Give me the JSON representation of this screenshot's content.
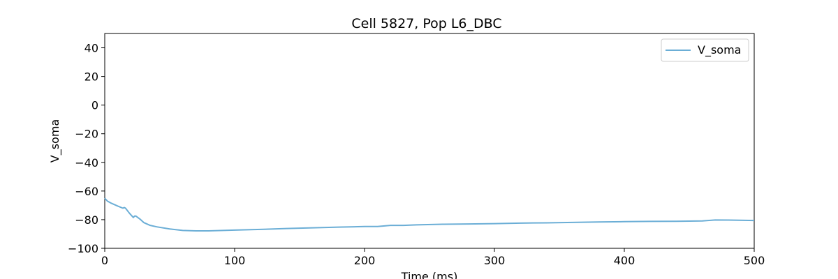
{
  "chart_data": {
    "type": "line",
    "title": "Cell 5827, Pop L6_DBC",
    "xlabel": "Time (ms)",
    "ylabel": "V_soma",
    "xlim": [
      0,
      500
    ],
    "ylim": [
      -100,
      50
    ],
    "xticks": [
      0,
      100,
      200,
      300,
      400,
      500
    ],
    "yticks": [
      -100,
      -80,
      -60,
      -40,
      -20,
      0,
      20,
      40
    ],
    "xtick_labels": [
      "0",
      "100",
      "200",
      "300",
      "400",
      "500"
    ],
    "ytick_labels": [
      "−100",
      "−80",
      "−60",
      "−40",
      "−20",
      "0",
      "20",
      "40"
    ],
    "grid": false,
    "legend_position": "top-right",
    "series": [
      {
        "name": "V_soma",
        "color": "#6baed6",
        "x": [
          0,
          2,
          5,
          10,
          14,
          15,
          16,
          19,
          22,
          23,
          24,
          27,
          30,
          35,
          40,
          50,
          60,
          70,
          80,
          100,
          120,
          140,
          160,
          180,
          200,
          210,
          220,
          230,
          240,
          260,
          280,
          300,
          320,
          340,
          360,
          380,
          400,
          420,
          440,
          460,
          470,
          480,
          500
        ],
        "y": [
          -65,
          -67,
          -68.5,
          -70.5,
          -72,
          -71.5,
          -72,
          -75.5,
          -78.5,
          -77.5,
          -77.5,
          -79.5,
          -82,
          -84,
          -85,
          -86.5,
          -87.5,
          -87.8,
          -87.8,
          -87.3,
          -86.8,
          -86.2,
          -85.7,
          -85.2,
          -84.8,
          -84.8,
          -84,
          -84,
          -83.6,
          -83.2,
          -83,
          -82.8,
          -82.4,
          -82.2,
          -81.9,
          -81.6,
          -81.4,
          -81.2,
          -81.1,
          -80.9,
          -80.2,
          -80.3,
          -80.6
        ]
      }
    ]
  }
}
